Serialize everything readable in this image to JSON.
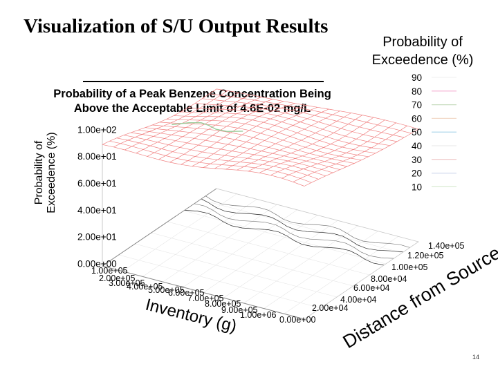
{
  "slide": {
    "title": "Visualization of S/U Output Results",
    "page_number": "14"
  },
  "chart_data": {
    "type": "surface3d",
    "title": "Probability of a Peak Benzene Concentration Being Above the Acceptable Limit of 4.6E-02 mg/L",
    "title_lines": [
      "Probability of a Peak Benzene Concentration Being",
      "Above the Acceptable Limit of 4.6E-02 mg/L"
    ],
    "xlabel": "Inventory (g)",
    "ylabel": "Distance from Source (cm)",
    "zlabel_lines": [
      "Probability of",
      "Exceedence (%)"
    ],
    "zlabel": "Probability of Exceedence (%)",
    "x_range": [
      0,
      1000000
    ],
    "y_range": [
      0,
      140000
    ],
    "z_range": [
      0,
      100
    ],
    "z_ticks": [
      "1.00e+02",
      "8.00e+01",
      "6.00e+01",
      "4.00e+01",
      "2.00e+01",
      "0.00e+00"
    ],
    "x_ticks": [
      "1.00e+05",
      "2.00e+05",
      "3.00e+05",
      "4.00e+05",
      "5.00e+05",
      "6.00e+05",
      "7.00e+05",
      "8.00e+05",
      "9.00e+05",
      "1.00e+06"
    ],
    "x_tick_zero": "0.00e+00",
    "y_ticks": [
      "2.00e+04",
      "4.00e+04",
      "6.00e+04",
      "8.00e+04",
      "1.00e+05",
      "1.20e+05",
      "1.40e+05"
    ],
    "x_label_visible": "Inventory (g)",
    "y_label_visible": "Distance from Source (cm",
    "legend": {
      "title_lines": [
        "Probability of",
        "Exceedence (%)"
      ],
      "position": "right",
      "levels": [
        "90",
        "80",
        "70",
        "60",
        "50",
        "40",
        "30",
        "20",
        "10"
      ],
      "colors": [
        "#f2f2f2",
        "#f5aed0",
        "#c8ddc0",
        "#f2d9c8",
        "#a9d4ea",
        "#ececec",
        "#eebfbf",
        "#d0d8ee",
        "#d8ead0"
      ]
    },
    "surface_color": "#f08080",
    "contour_colors": [
      "#222222",
      "#777777",
      "#99cc99"
    ]
  }
}
